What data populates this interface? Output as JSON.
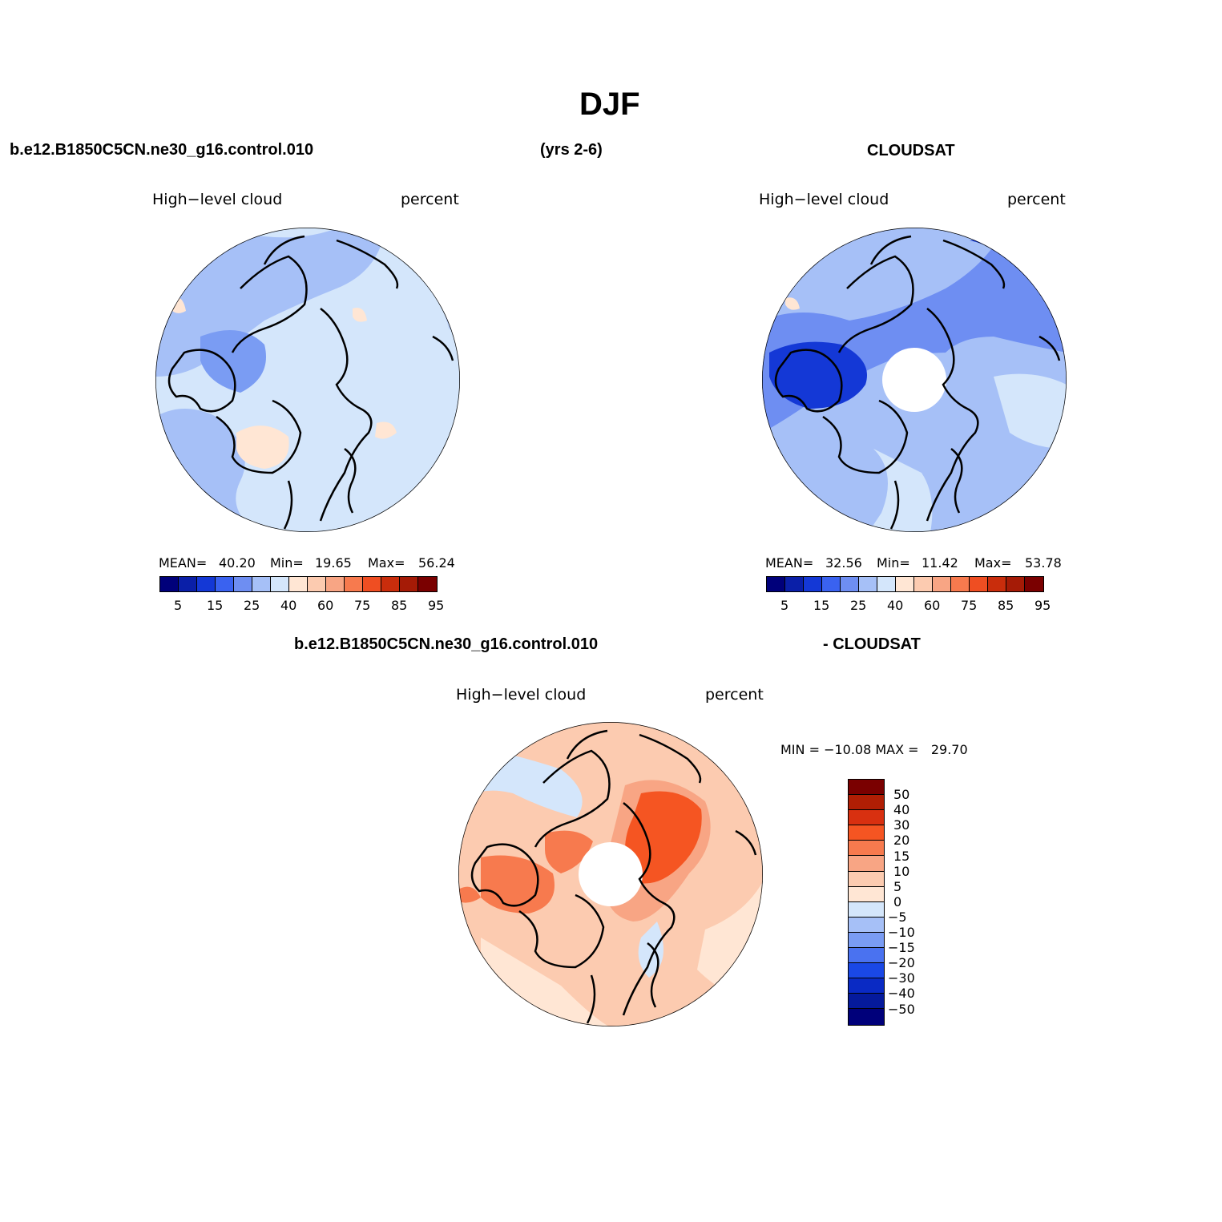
{
  "title": "DJF",
  "header": {
    "case": "b.e12.B1850C5CN.ne30_g16.control.010",
    "years": "(yrs 2-6)",
    "obs": "CLOUDSAT"
  },
  "diff_header": {
    "case": "b.e12.B1850C5CN.ne30_g16.control.010",
    "obs": "- CLOUDSAT"
  },
  "panels": {
    "model": {
      "variable": "High−level cloud",
      "units": "percent",
      "mean_label": "MEAN=",
      "mean": "40.20",
      "min_label": "Min=",
      "min": "19.65",
      "max_label": "Max=",
      "max": "56.24"
    },
    "obs": {
      "variable": "High−level cloud",
      "units": "percent",
      "mean_label": "MEAN=",
      "mean": "32.56",
      "min_label": "Min=",
      "min": "11.42",
      "max_label": "Max=",
      "max": "53.78"
    },
    "diff": {
      "variable": "High−level cloud",
      "units": "percent",
      "minmax_text": "MIN = −10.08 MAX =   29.70"
    }
  },
  "abs_colorbar": {
    "colors": [
      "#00007a",
      "#0a1fa8",
      "#1438d6",
      "#3a62f0",
      "#6e8ef2",
      "#a6c0f7",
      "#d4e6fb",
      "#ffe6d4",
      "#fccbb0",
      "#f8a584",
      "#f77a4e",
      "#ef4e22",
      "#c92d0c",
      "#a51b06",
      "#7a0000"
    ],
    "tick_labels": [
      "5",
      "15",
      "25",
      "40",
      "60",
      "75",
      "85",
      "95"
    ]
  },
  "diff_colorbar": {
    "colors": [
      "#7a0000",
      "#b01e04",
      "#d83010",
      "#f55522",
      "#f77a4e",
      "#f8a584",
      "#fccbb0",
      "#ffe6d4",
      "#d4e6fb",
      "#a6c0f7",
      "#7a9cf3",
      "#4a72f0",
      "#1a48e6",
      "#0a2ac4",
      "#051a9c",
      "#00007a"
    ],
    "tick_labels": [
      "50",
      "40",
      "30",
      "20",
      "15",
      "10",
      "5",
      "0",
      "−5",
      "−10",
      "−15",
      "−20",
      "−30",
      "−40",
      "−50"
    ]
  },
  "map_fill": {
    "model_base": "#d4e6fb",
    "obs_base": "#a6c0f7",
    "diff_base": "#fccbb0"
  }
}
